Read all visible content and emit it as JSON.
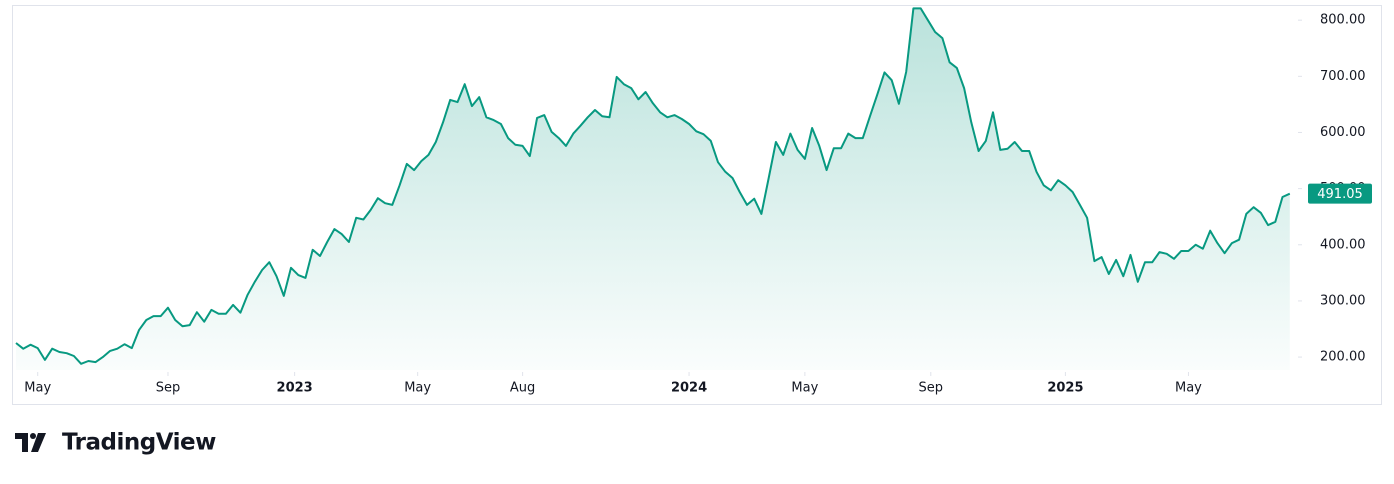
{
  "chart_data": {
    "type": "area",
    "color": "#089981",
    "values": [
      225,
      215,
      222,
      216,
      195,
      215,
      209,
      207,
      202,
      188,
      193,
      191,
      200,
      211,
      215,
      223,
      216,
      248,
      266,
      273,
      273,
      288,
      266,
      255,
      257,
      280,
      263,
      284,
      277,
      277,
      293,
      279,
      311,
      334,
      355,
      369,
      344,
      309,
      359,
      346,
      341,
      391,
      380,
      405,
      428,
      419,
      405,
      448,
      445,
      462,
      483,
      474,
      471,
      506,
      544,
      533,
      549,
      560,
      583,
      618,
      658,
      654,
      686,
      647,
      663,
      627,
      622,
      615,
      590,
      578,
      576,
      558,
      626,
      631,
      601,
      590,
      576,
      598,
      612,
      627,
      640,
      629,
      627,
      699,
      686,
      679,
      659,
      672,
      652,
      636,
      627,
      631,
      624,
      615,
      602,
      597,
      585,
      547,
      530,
      519,
      494,
      471,
      482,
      455,
      519,
      583,
      560,
      598,
      569,
      553,
      608,
      576,
      533,
      572,
      572,
      598,
      590,
      590,
      629,
      667,
      707,
      693,
      651,
      708,
      821,
      821,
      800,
      779,
      768,
      725,
      715,
      679,
      618,
      567,
      585,
      636,
      569,
      571,
      583,
      567,
      567,
      530,
      506,
      497,
      515,
      506,
      494,
      471,
      448,
      371,
      378,
      348,
      373,
      344,
      382,
      334,
      369,
      369,
      387,
      384,
      375,
      389,
      389,
      400,
      393,
      425,
      403,
      385,
      403,
      409,
      455,
      467,
      457,
      435,
      441,
      485,
      491
    ],
    "last_value": 491.05,
    "xlim": [
      0,
      177
    ],
    "xticks": [
      {
        "value": 3,
        "label": "May"
      },
      {
        "value": 21,
        "label": "Sep"
      },
      {
        "value": 38.5,
        "label": "2023"
      },
      {
        "value": 55.5,
        "label": "May"
      },
      {
        "value": 70,
        "label": "Aug"
      },
      {
        "value": 93,
        "label": "2024"
      },
      {
        "value": 109,
        "label": "May"
      },
      {
        "value": 126.4,
        "label": "Sep"
      },
      {
        "value": 145,
        "label": "2025"
      },
      {
        "value": 162,
        "label": "May"
      }
    ],
    "ylim": [
      177,
      827
    ],
    "yticks": [
      {
        "value": 200,
        "label": "200.00"
      },
      {
        "value": 300,
        "label": "300.00"
      },
      {
        "value": 400,
        "label": "400.00"
      },
      {
        "value": 500,
        "label": "500.00"
      },
      {
        "value": 600,
        "label": "600.00"
      },
      {
        "value": 700,
        "label": "700.00"
      },
      {
        "value": 800,
        "label": "800.00"
      }
    ]
  },
  "brand": "TradingView"
}
